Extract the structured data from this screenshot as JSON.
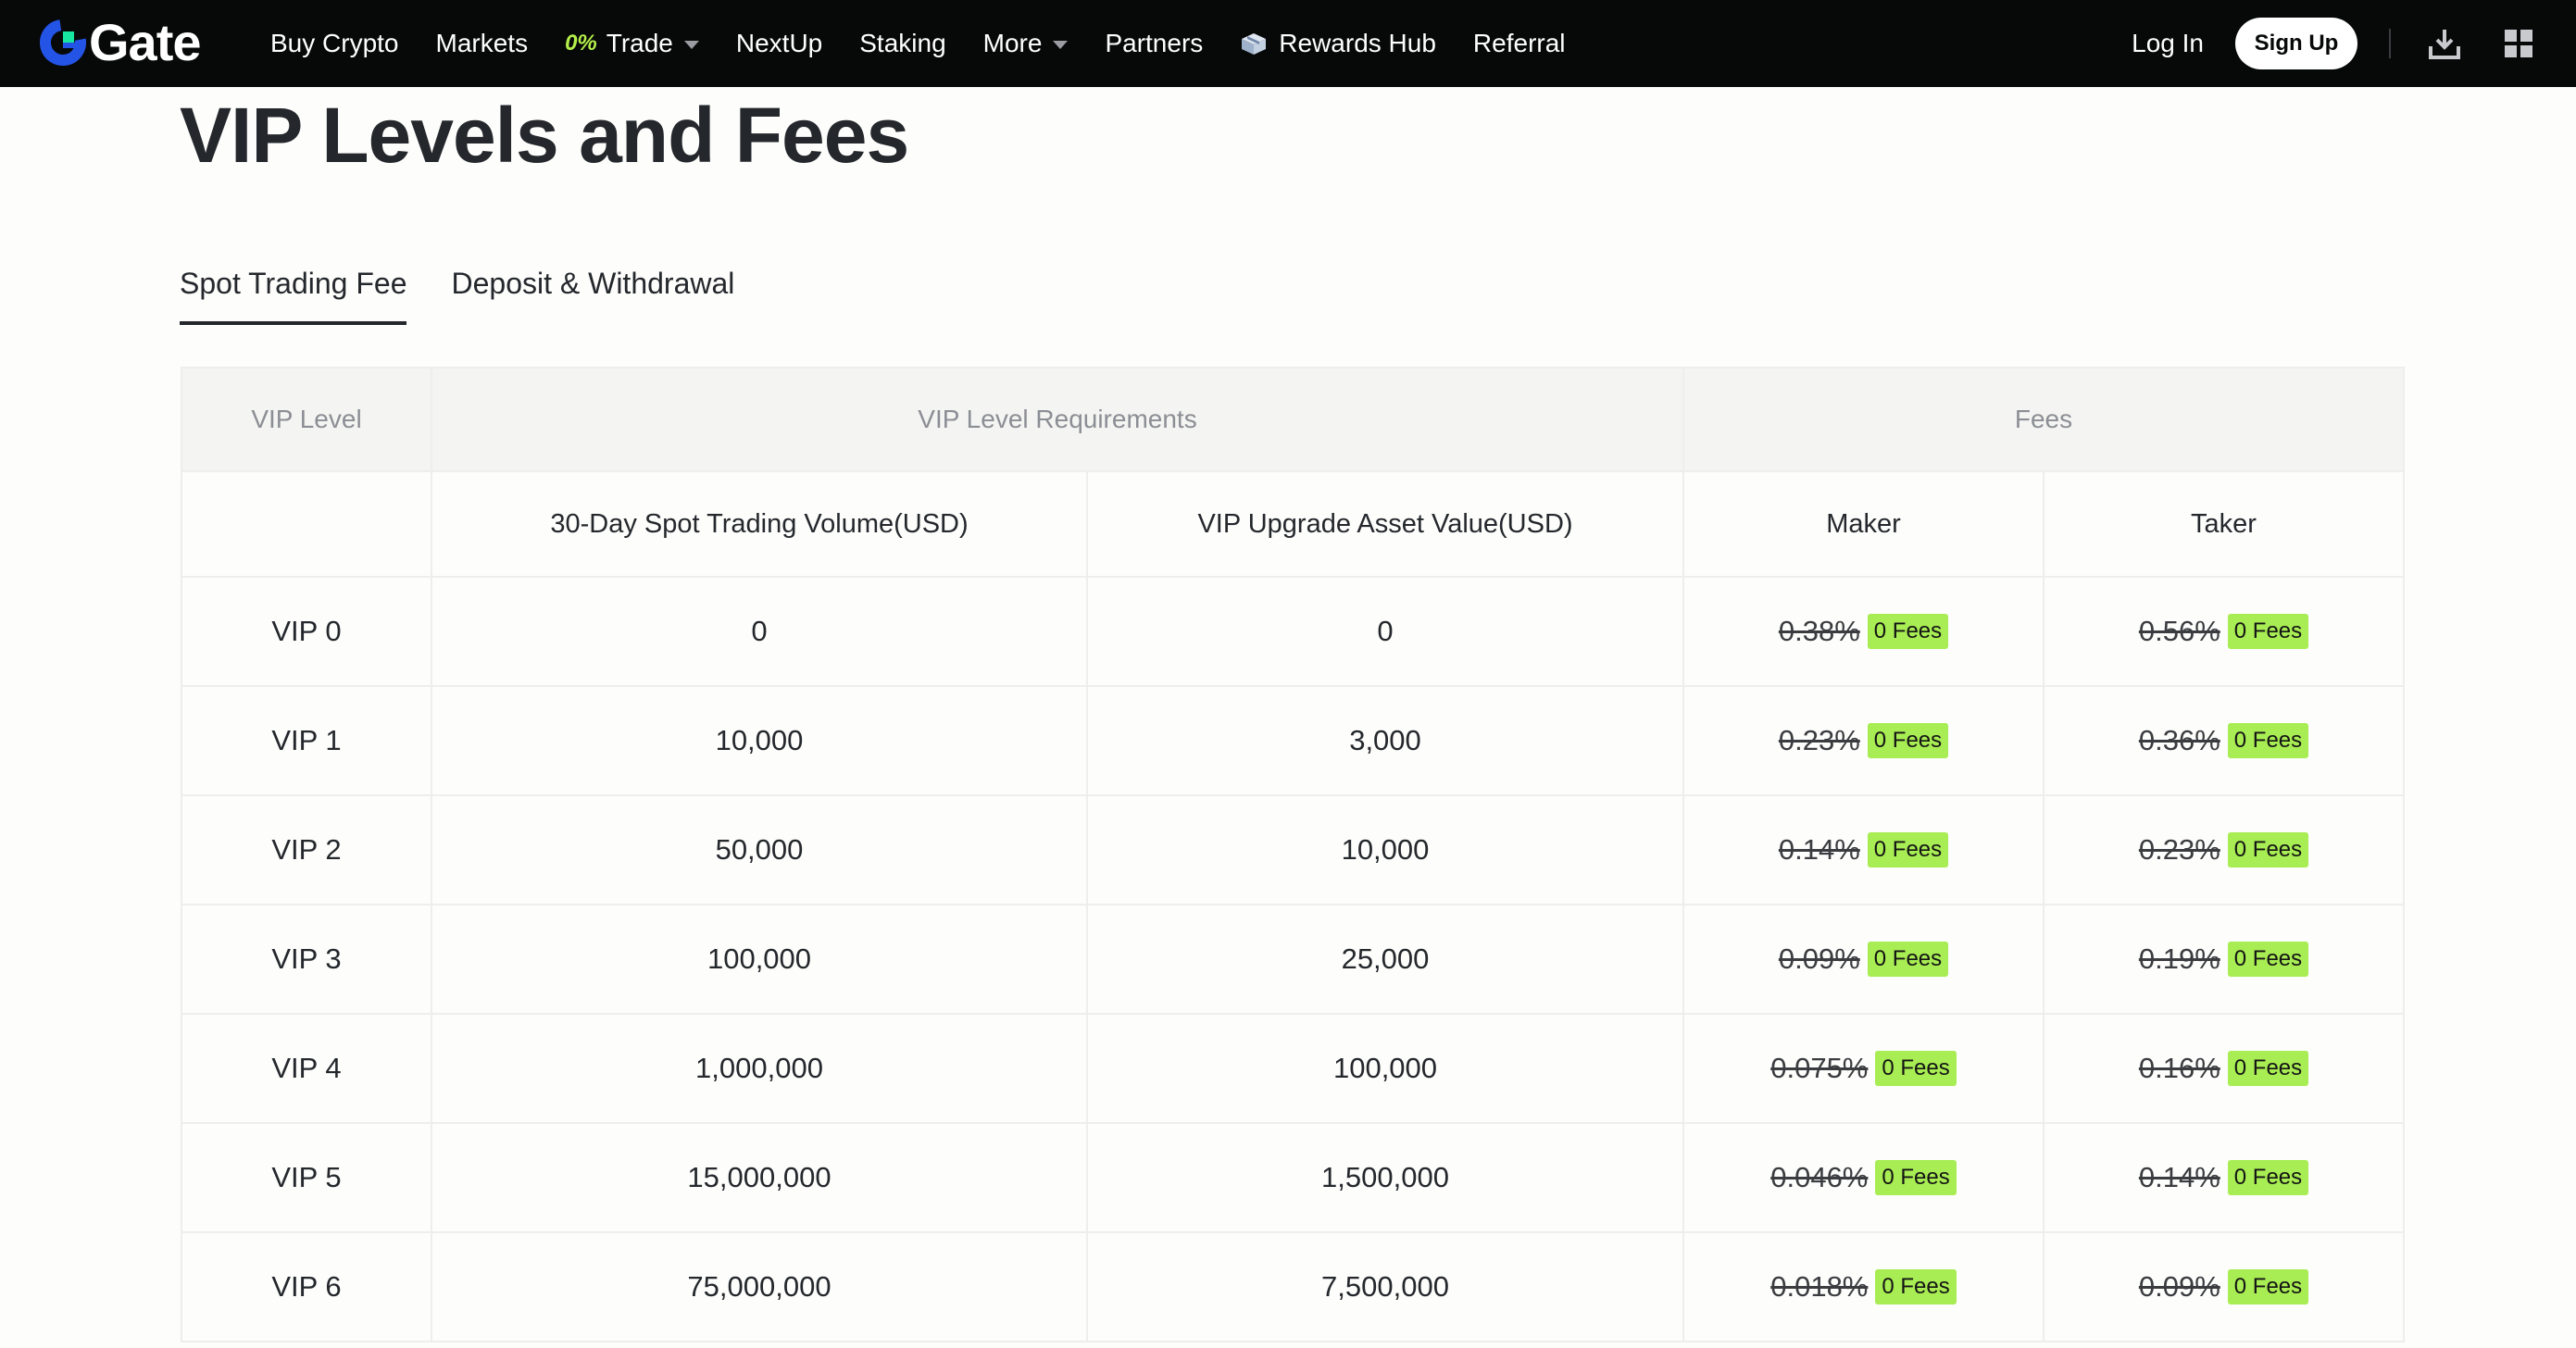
{
  "nav": {
    "brand": "Gate",
    "items": [
      {
        "label": "Buy Crypto"
      },
      {
        "label": "Markets"
      },
      {
        "label": "Trade",
        "badge": "0%",
        "has_caret": true
      },
      {
        "label": "NextUp"
      },
      {
        "label": "Staking"
      },
      {
        "label": "More",
        "has_caret": true
      },
      {
        "label": "Partners"
      },
      {
        "label": "Rewards Hub",
        "icon": "gift-box-icon"
      },
      {
        "label": "Referral"
      }
    ],
    "login": "Log In",
    "signup": "Sign Up",
    "icons": [
      "download-icon",
      "grid-menu-icon"
    ]
  },
  "page": {
    "title": "VIP Levels and Fees",
    "tabs": [
      {
        "label": "Spot Trading Fee",
        "active": true
      },
      {
        "label": "Deposit & Withdrawal",
        "active": false
      }
    ]
  },
  "table": {
    "group_headers": {
      "level": "VIP Level",
      "requirements": "VIP Level Requirements",
      "fees": "Fees"
    },
    "sub_headers": {
      "volume": "30-Day Spot Trading Volume(USD)",
      "asset": "VIP Upgrade Asset Value(USD)",
      "maker": "Maker",
      "taker": "Taker"
    },
    "zero_fee_label": "0 Fees",
    "rows": [
      {
        "level": "VIP 0",
        "volume": "0",
        "asset": "0",
        "maker": "0.38%",
        "taker": "0.56%"
      },
      {
        "level": "VIP 1",
        "volume": "10,000",
        "asset": "3,000",
        "maker": "0.23%",
        "taker": "0.36%"
      },
      {
        "level": "VIP 2",
        "volume": "50,000",
        "asset": "10,000",
        "maker": "0.14%",
        "taker": "0.23%"
      },
      {
        "level": "VIP 3",
        "volume": "100,000",
        "asset": "25,000",
        "maker": "0.09%",
        "taker": "0.19%"
      },
      {
        "level": "VIP 4",
        "volume": "1,000,000",
        "asset": "100,000",
        "maker": "0.075%",
        "taker": "0.16%"
      },
      {
        "level": "VIP 5",
        "volume": "15,000,000",
        "asset": "1,500,000",
        "maker": "0.046%",
        "taker": "0.14%"
      },
      {
        "level": "VIP 6",
        "volume": "75,000,000",
        "asset": "7,500,000",
        "maker": "0.018%",
        "taker": "0.09%"
      }
    ]
  },
  "colors": {
    "nav_bg": "#070808",
    "page_bg": "#fdfdfb",
    "accent_green": "#a8ed53",
    "brand_blue": "#2354e6",
    "brand_green": "#17e6a1"
  }
}
